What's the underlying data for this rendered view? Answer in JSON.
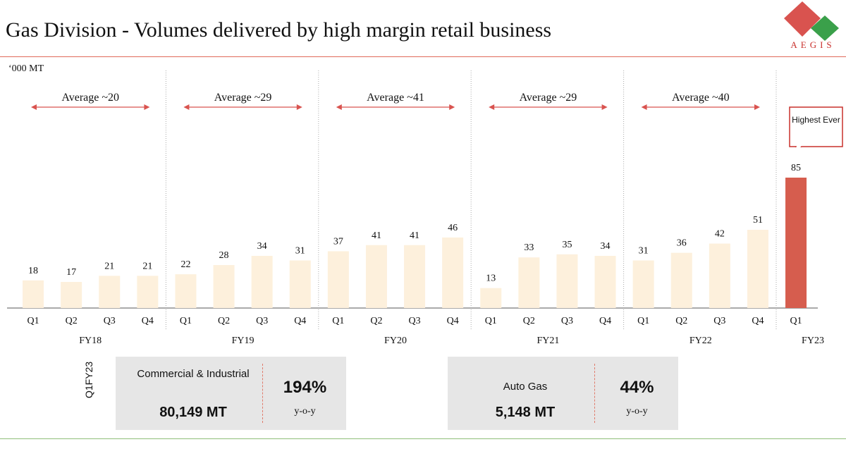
{
  "header": {
    "title": "Gas Division - Volumes delivered by high margin retail business",
    "logo_text": "AEGIS"
  },
  "colors": {
    "bar": "#fdf0dc",
    "bar_highlight": "#d65d4e",
    "accent": "#d9534f",
    "logo_green": "#3aa04a"
  },
  "chart_data": {
    "type": "bar",
    "ylabel": "‘000 MT",
    "ylim": [
      0,
      90
    ],
    "grid": false,
    "fiscal_years": [
      {
        "label": "FY18",
        "quarters": [
          "Q1",
          "Q2",
          "Q3",
          "Q4"
        ],
        "values": [
          18,
          17,
          21,
          21
        ],
        "average_label": "Average ~20"
      },
      {
        "label": "FY19",
        "quarters": [
          "Q1",
          "Q2",
          "Q3",
          "Q4"
        ],
        "values": [
          22,
          28,
          34,
          31
        ],
        "average_label": "Average ~29"
      },
      {
        "label": "FY20",
        "quarters": [
          "Q1",
          "Q2",
          "Q3",
          "Q4"
        ],
        "values": [
          37,
          41,
          41,
          46
        ],
        "average_label": "Average ~41"
      },
      {
        "label": "FY21",
        "quarters": [
          "Q1",
          "Q2",
          "Q3",
          "Q4"
        ],
        "values": [
          13,
          33,
          35,
          34
        ],
        "average_label": "Average ~29"
      },
      {
        "label": "FY22",
        "quarters": [
          "Q1",
          "Q2",
          "Q3",
          "Q4"
        ],
        "values": [
          31,
          36,
          42,
          51
        ],
        "average_label": "Average ~40"
      },
      {
        "label": "FY23",
        "quarters": [
          "Q1"
        ],
        "values": [
          85
        ],
        "average_label": null
      }
    ],
    "annotation": "Highest Ever"
  },
  "summary": {
    "side_label": "Q1FY23",
    "commercial": {
      "category": "Commercial & Industrial",
      "volume": "80,149 MT",
      "growth": "194%",
      "growth_label": "y-o-y"
    },
    "autogas": {
      "category": "Auto Gas",
      "volume": "5,148 MT",
      "growth": "44%",
      "growth_label": "y-o-y"
    }
  }
}
